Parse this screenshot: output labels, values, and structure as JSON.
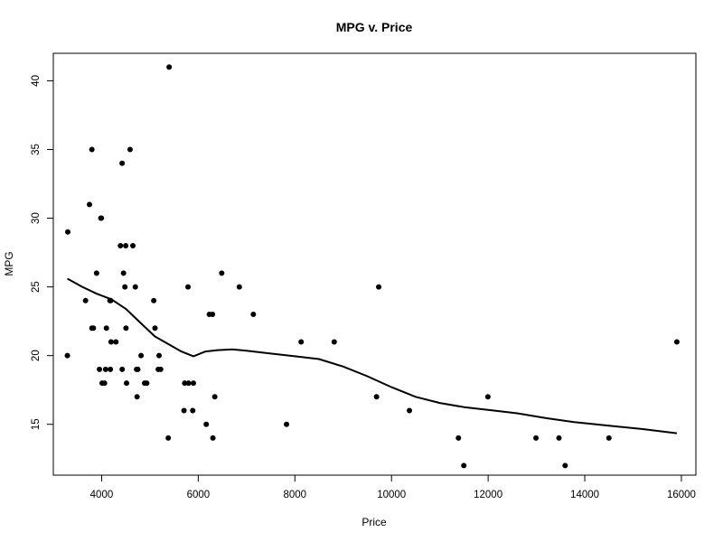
{
  "chart_data": {
    "type": "scatter",
    "title": "MPG v. Price",
    "xlabel": "Price",
    "ylabel": "MPG",
    "xlim": [
      3000,
      16300
    ],
    "ylim": [
      11.3,
      42
    ],
    "x_ticks": [
      4000,
      6000,
      8000,
      10000,
      12000,
      14000,
      16000
    ],
    "y_ticks": [
      15,
      20,
      25,
      30,
      35,
      40
    ],
    "grid": false,
    "legend": "none",
    "colors": {
      "points": "#000000",
      "line": "#000000",
      "axes": "#000000"
    },
    "series": [
      {
        "type": "scatter",
        "points": [
          [
            3291,
            20
          ],
          [
            3299,
            29
          ],
          [
            3667,
            24
          ],
          [
            3748,
            31
          ],
          [
            3798,
            35
          ],
          [
            3799,
            22
          ],
          [
            3829,
            22
          ],
          [
            3895,
            26
          ],
          [
            3955,
            19
          ],
          [
            3984,
            30
          ],
          [
            3995,
            30
          ],
          [
            4010,
            18
          ],
          [
            4060,
            18
          ],
          [
            4082,
            19
          ],
          [
            4099,
            22
          ],
          [
            4172,
            24
          ],
          [
            4181,
            19
          ],
          [
            4187,
            24
          ],
          [
            4195,
            21
          ],
          [
            4296,
            21
          ],
          [
            4389,
            28
          ],
          [
            4424,
            34
          ],
          [
            4425,
            19
          ],
          [
            4453,
            26
          ],
          [
            4482,
            25
          ],
          [
            4499,
            28
          ],
          [
            4504,
            22
          ],
          [
            4516,
            18
          ],
          [
            4589,
            35
          ],
          [
            4647,
            28
          ],
          [
            4697,
            25
          ],
          [
            4723,
            19
          ],
          [
            4733,
            17
          ],
          [
            4749,
            19
          ],
          [
            4816,
            20
          ],
          [
            4890,
            18
          ],
          [
            4934,
            18
          ],
          [
            5079,
            24
          ],
          [
            5104,
            22
          ],
          [
            5172,
            19
          ],
          [
            5189,
            20
          ],
          [
            5222,
            19
          ],
          [
            5379,
            14
          ],
          [
            5397,
            41
          ],
          [
            5705,
            16
          ],
          [
            5719,
            18
          ],
          [
            5788,
            25
          ],
          [
            5798,
            18
          ],
          [
            5886,
            16
          ],
          [
            5899,
            18
          ],
          [
            6165,
            15
          ],
          [
            6229,
            23
          ],
          [
            6295,
            23
          ],
          [
            6303,
            14
          ],
          [
            6342,
            17
          ],
          [
            6486,
            26
          ],
          [
            6850,
            25
          ],
          [
            7140,
            23
          ],
          [
            7827,
            15
          ],
          [
            8129,
            21
          ],
          [
            8814,
            21
          ],
          [
            9690,
            17
          ],
          [
            9735,
            25
          ],
          [
            10371,
            16
          ],
          [
            11385,
            14
          ],
          [
            11497,
            12
          ],
          [
            11995,
            17
          ],
          [
            12990,
            14
          ],
          [
            13466,
            14
          ],
          [
            13594,
            12
          ],
          [
            14500,
            14
          ],
          [
            15906,
            21
          ]
        ]
      },
      {
        "type": "line",
        "points": [
          [
            3291,
            25.6
          ],
          [
            3600,
            25.0
          ],
          [
            3900,
            24.5
          ],
          [
            4200,
            24.1
          ],
          [
            4500,
            23.4
          ],
          [
            4800,
            22.4
          ],
          [
            5100,
            21.4
          ],
          [
            5400,
            20.8
          ],
          [
            5650,
            20.3
          ],
          [
            5900,
            19.95
          ],
          [
            6150,
            20.3
          ],
          [
            6400,
            20.4
          ],
          [
            6700,
            20.45
          ],
          [
            7000,
            20.35
          ],
          [
            7500,
            20.15
          ],
          [
            8000,
            19.95
          ],
          [
            8500,
            19.75
          ],
          [
            9000,
            19.2
          ],
          [
            9500,
            18.5
          ],
          [
            10000,
            17.7
          ],
          [
            10500,
            17.0
          ],
          [
            11000,
            16.55
          ],
          [
            11500,
            16.25
          ],
          [
            12000,
            16.05
          ],
          [
            12600,
            15.8
          ],
          [
            13200,
            15.45
          ],
          [
            13800,
            15.15
          ],
          [
            14500,
            14.9
          ],
          [
            15200,
            14.65
          ],
          [
            15906,
            14.35
          ]
        ]
      }
    ]
  }
}
